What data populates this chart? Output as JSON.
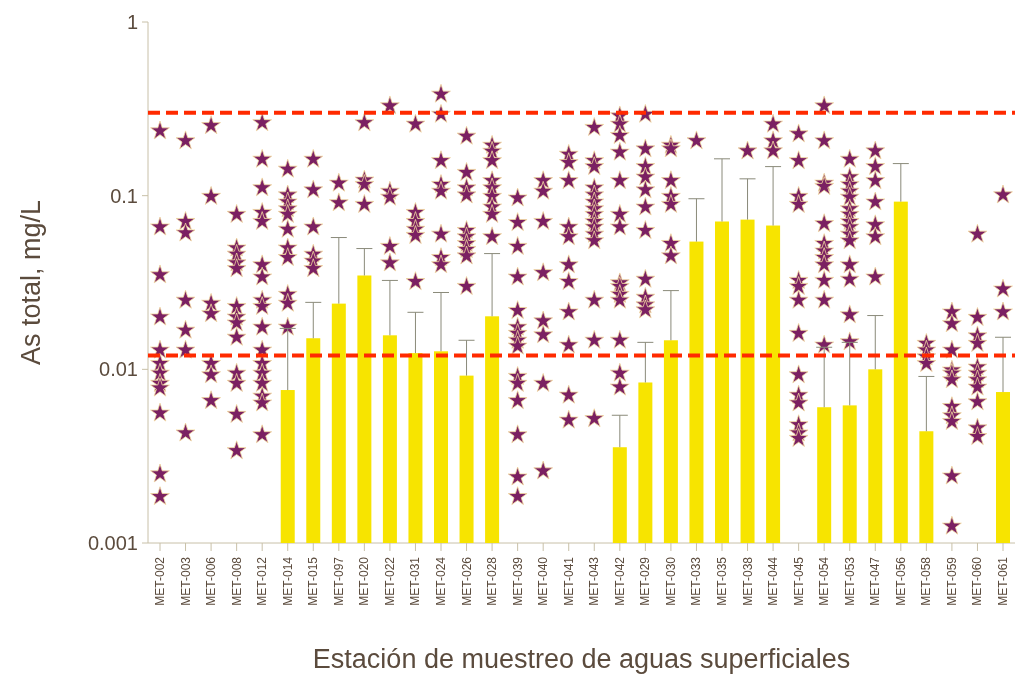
{
  "chart_data": {
    "type": "bar",
    "log": true,
    "xlabel": "Estación de muestreo de aguas superficiales",
    "ylabel": "As total, mg/L",
    "categories": [
      "MET-002",
      "MET-003",
      "MET-006",
      "MET-008",
      "MET-012",
      "MET-014",
      "MET-015",
      "MET-097",
      "MET-020",
      "MET-022",
      "MET-031",
      "MET-024",
      "MET-026",
      "MET-028",
      "MET-039",
      "MET-040",
      "MET-041",
      "MET-043",
      "MET-042",
      "MET-029",
      "MET-030",
      "MET-033",
      "MET-035",
      "MET-038",
      "MET-044",
      "MET-045",
      "MET-054",
      "MET-053",
      "MET-047",
      "MET-056",
      "MET-058",
      "MET-059",
      "MET-060",
      "MET-061"
    ],
    "ylim": [
      0.001,
      1
    ],
    "yticks": [
      0.001,
      0.01,
      0.1,
      1
    ],
    "grid": false,
    "ref_lines": [
      {
        "axis": "y",
        "value": 0.3,
        "color": "#ff2a00",
        "line_style": "dashed"
      },
      {
        "axis": "y",
        "value": 0.012,
        "color": "#ff2a00",
        "line_style": "dashed"
      }
    ],
    "series": [
      {
        "type": "bar",
        "color": "#f7e400",
        "values": [
          null,
          null,
          null,
          null,
          null,
          0.0076,
          0.0151,
          0.0239,
          0.0347,
          0.0157,
          0.0124,
          0.0127,
          0.0092,
          0.0202,
          null,
          null,
          null,
          null,
          0.00356,
          0.0084,
          0.0147,
          0.0544,
          0.071,
          0.0728,
          0.0673,
          null,
          0.00605,
          0.0062,
          0.01,
          0.0924,
          0.0044,
          null,
          null,
          0.0074
        ],
        "errors": [
          null,
          null,
          null,
          null,
          null,
          [
            0.0076,
            0.0172
          ],
          [
            0.0151,
            0.0243
          ],
          [
            0.0239,
            0.0574
          ],
          [
            0.0347,
            0.0496
          ],
          [
            0.0157,
            0.0325
          ],
          [
            0.0124,
            0.0213
          ],
          [
            0.0127,
            0.0277
          ],
          [
            0.0092,
            0.0147
          ],
          [
            0.0202,
            0.0464
          ],
          null,
          null,
          null,
          null,
          [
            0.00356,
            0.00544
          ],
          [
            0.0084,
            0.0143
          ],
          [
            0.0147,
            0.0284
          ],
          [
            0.0544,
            0.096
          ],
          [
            0.071,
            0.163
          ],
          [
            0.0728,
            0.125
          ],
          [
            0.0673,
            0.147
          ],
          null,
          [
            0.00605,
            0.0134
          ],
          [
            0.0062,
            0.0143
          ],
          [
            0.01,
            0.0204
          ],
          [
            0.0924,
            0.153
          ],
          [
            0.0044,
            0.0091
          ],
          null,
          null,
          [
            0.0074,
            0.0153
          ]
        ]
      },
      {
        "type": "scatter",
        "color": "#7b2062",
        "marker": "star",
        "x": [
          "MET-002",
          "MET-002",
          "MET-002",
          "MET-002",
          "MET-002",
          "MET-002",
          "MET-002",
          "MET-002",
          "MET-002",
          "MET-002",
          "MET-002",
          "MET-002",
          "MET-003",
          "MET-003",
          "MET-003",
          "MET-003",
          "MET-003",
          "MET-003",
          "MET-003",
          "MET-006",
          "MET-006",
          "MET-006",
          "MET-006",
          "MET-006",
          "MET-006",
          "MET-006",
          "MET-008",
          "MET-008",
          "MET-008",
          "MET-008",
          "MET-008",
          "MET-008",
          "MET-008",
          "MET-008",
          "MET-008",
          "MET-008",
          "MET-008",
          "MET-008",
          "MET-008",
          "MET-012",
          "MET-012",
          "MET-012",
          "MET-012",
          "MET-012",
          "MET-012",
          "MET-012",
          "MET-012",
          "MET-012",
          "MET-012",
          "MET-012",
          "MET-012",
          "MET-012",
          "MET-012",
          "MET-012",
          "MET-012",
          "MET-012",
          "MET-014",
          "MET-014",
          "MET-014",
          "MET-014",
          "MET-014",
          "MET-014",
          "MET-014",
          "MET-014",
          "MET-014",
          "MET-014",
          "MET-014",
          "MET-015",
          "MET-015",
          "MET-015",
          "MET-015",
          "MET-015",
          "MET-015",
          "MET-097",
          "MET-097",
          "MET-020",
          "MET-020",
          "MET-020",
          "MET-020",
          "MET-022",
          "MET-022",
          "MET-022",
          "MET-022",
          "MET-022",
          "MET-031",
          "MET-031",
          "MET-031",
          "MET-031",
          "MET-031",
          "MET-031",
          "MET-024",
          "MET-024",
          "MET-024",
          "MET-024",
          "MET-024",
          "MET-024",
          "MET-024",
          "MET-024",
          "MET-026",
          "MET-026",
          "MET-026",
          "MET-026",
          "MET-026",
          "MET-026",
          "MET-026",
          "MET-026",
          "MET-026",
          "MET-026",
          "MET-028",
          "MET-028",
          "MET-028",
          "MET-028",
          "MET-028",
          "MET-028",
          "MET-028",
          "MET-028",
          "MET-028",
          "MET-039",
          "MET-039",
          "MET-039",
          "MET-039",
          "MET-039",
          "MET-039",
          "MET-039",
          "MET-039",
          "MET-039",
          "MET-039",
          "MET-039",
          "MET-039",
          "MET-039",
          "MET-039",
          "MET-039",
          "MET-040",
          "MET-040",
          "MET-040",
          "MET-040",
          "MET-040",
          "MET-040",
          "MET-040",
          "MET-040",
          "MET-041",
          "MET-041",
          "MET-041",
          "MET-041",
          "MET-041",
          "MET-041",
          "MET-041",
          "MET-041",
          "MET-041",
          "MET-041",
          "MET-041",
          "MET-043",
          "MET-043",
          "MET-043",
          "MET-043",
          "MET-043",
          "MET-043",
          "MET-043",
          "MET-043",
          "MET-043",
          "MET-043",
          "MET-043",
          "MET-043",
          "MET-043",
          "MET-043",
          "MET-043",
          "MET-042",
          "MET-042",
          "MET-042",
          "MET-042",
          "MET-042",
          "MET-042",
          "MET-042",
          "MET-042",
          "MET-042",
          "MET-042",
          "MET-042",
          "MET-042",
          "MET-042",
          "MET-042",
          "MET-029",
          "MET-029",
          "MET-029",
          "MET-029",
          "MET-029",
          "MET-029",
          "MET-029",
          "MET-029",
          "MET-029",
          "MET-029",
          "MET-029",
          "MET-030",
          "MET-030",
          "MET-030",
          "MET-030",
          "MET-030",
          "MET-030",
          "MET-030",
          "MET-033",
          "MET-038",
          "MET-044",
          "MET-044",
          "MET-044",
          "MET-045",
          "MET-045",
          "MET-045",
          "MET-045",
          "MET-045",
          "MET-045",
          "MET-045",
          "MET-045",
          "MET-045",
          "MET-045",
          "MET-045",
          "MET-045",
          "MET-045",
          "MET-045",
          "MET-054",
          "MET-054",
          "MET-054",
          "MET-054",
          "MET-054",
          "MET-054",
          "MET-054",
          "MET-054",
          "MET-054",
          "MET-054",
          "MET-054",
          "MET-054",
          "MET-053",
          "MET-053",
          "MET-053",
          "MET-053",
          "MET-053",
          "MET-053",
          "MET-053",
          "MET-053",
          "MET-053",
          "MET-053",
          "MET-053",
          "MET-053",
          "MET-053",
          "MET-053",
          "MET-053",
          "MET-047",
          "MET-047",
          "MET-047",
          "MET-047",
          "MET-047",
          "MET-047",
          "MET-047",
          "MET-058",
          "MET-058",
          "MET-058",
          "MET-058",
          "MET-059",
          "MET-059",
          "MET-059",
          "MET-059",
          "MET-059",
          "MET-059",
          "MET-059",
          "MET-059",
          "MET-059",
          "MET-059",
          "MET-059",
          "MET-060",
          "MET-060",
          "MET-060",
          "MET-060",
          "MET-060",
          "MET-060",
          "MET-060",
          "MET-060",
          "MET-060",
          "MET-060",
          "MET-060",
          "MET-061",
          "MET-061",
          "MET-061"
        ],
        "values": [
          0.236,
          0.066,
          0.035,
          0.02,
          0.0129,
          0.0108,
          0.0095,
          0.0083,
          0.0078,
          0.0056,
          0.0025,
          0.00185,
          0.207,
          0.071,
          0.061,
          0.025,
          0.0168,
          0.0129,
          0.0043,
          0.253,
          0.099,
          0.024,
          0.0209,
          0.0108,
          0.0093,
          0.0066,
          0.078,
          0.05,
          0.046,
          0.041,
          0.038,
          0.023,
          0.02,
          0.0185,
          0.0153,
          0.0095,
          0.0083,
          0.0055,
          0.0034,
          0.263,
          0.162,
          0.111,
          0.08,
          0.071,
          0.04,
          0.034,
          0.025,
          0.023,
          0.0175,
          0.0129,
          0.0108,
          0.0095,
          0.0083,
          0.007,
          0.0064,
          0.0042,
          0.142,
          0.101,
          0.092,
          0.084,
          0.078,
          0.064,
          0.05,
          0.044,
          0.027,
          0.024,
          0.0175,
          0.162,
          0.108,
          0.066,
          0.046,
          0.042,
          0.038,
          0.118,
          0.091,
          0.263,
          0.123,
          0.116,
          0.089,
          0.329,
          0.106,
          0.098,
          0.051,
          0.041,
          0.258,
          0.08,
          0.071,
          0.064,
          0.059,
          0.032,
          0.384,
          0.294,
          0.159,
          0.116,
          0.106,
          0.06,
          0.044,
          0.04,
          0.22,
          0.136,
          0.111,
          0.101,
          0.063,
          0.058,
          0.053,
          0.049,
          0.045,
          0.03,
          0.195,
          0.18,
          0.159,
          0.122,
          0.111,
          0.099,
          0.086,
          0.078,
          0.058,
          0.097,
          0.07,
          0.051,
          0.034,
          0.0218,
          0.0175,
          0.0161,
          0.0147,
          0.0136,
          0.0091,
          0.0083,
          0.0066,
          0.0042,
          0.0024,
          0.00185,
          0.122,
          0.106,
          0.071,
          0.036,
          0.019,
          0.0158,
          0.0083,
          0.0026,
          0.173,
          0.155,
          0.122,
          0.066,
          0.058,
          0.04,
          0.032,
          0.0214,
          0.0138,
          0.0071,
          0.0051,
          0.247,
          0.159,
          0.147,
          0.111,
          0.101,
          0.092,
          0.084,
          0.078,
          0.071,
          0.066,
          0.06,
          0.055,
          0.025,
          0.0147,
          0.0052,
          0.288,
          0.258,
          0.222,
          0.178,
          0.122,
          0.078,
          0.066,
          0.0315,
          0.03,
          0.027,
          0.025,
          0.0147,
          0.0095,
          0.0079,
          0.294,
          0.186,
          0.147,
          0.128,
          0.108,
          0.086,
          0.063,
          0.033,
          0.026,
          0.0235,
          0.022,
          0.195,
          0.186,
          0.122,
          0.099,
          0.089,
          0.053,
          0.045,
          0.207,
          0.181,
          0.258,
          0.207,
          0.181,
          0.227,
          0.159,
          0.099,
          0.089,
          0.0325,
          0.03,
          0.025,
          0.0161,
          0.0093,
          0.0071,
          0.0064,
          0.0048,
          0.0043,
          0.004,
          0.329,
          0.207,
          0.118,
          0.113,
          0.069,
          0.053,
          0.048,
          0.044,
          0.04,
          0.0325,
          0.025,
          0.0138,
          0.162,
          0.128,
          0.116,
          0.106,
          0.098,
          0.084,
          0.078,
          0.071,
          0.066,
          0.06,
          0.055,
          0.04,
          0.033,
          0.0206,
          0.0144,
          0.181,
          0.147,
          0.122,
          0.092,
          0.068,
          0.058,
          0.034,
          0.0141,
          0.0129,
          0.0118,
          0.0108,
          0.0214,
          0.0183,
          0.0129,
          0.0099,
          0.0095,
          0.0087,
          0.0061,
          0.0054,
          0.005,
          0.00243,
          0.00125,
          0.06,
          0.0199,
          0.0156,
          0.0141,
          0.0103,
          0.0095,
          0.0087,
          0.0079,
          0.0065,
          0.0046,
          0.0041,
          0.101,
          0.029,
          0.0214
        ]
      }
    ]
  }
}
